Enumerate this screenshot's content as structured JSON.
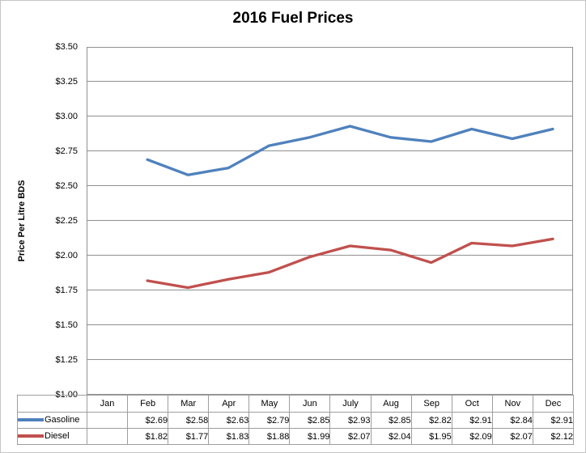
{
  "title": "2016 Fuel Prices",
  "y_axis": {
    "title": "Price Per Litre BDS",
    "tick_labels": [
      "$3.50",
      "$3.25",
      "$3.00",
      "$2.75",
      "$2.50",
      "$2.25",
      "$2.00",
      "$1.75",
      "$1.50",
      "$1.25",
      "$1.00"
    ]
  },
  "colors": {
    "gasoline": "#4F81BD",
    "diesel": "#C0504D",
    "gridline": "#8f8f8f",
    "table_border": "#9e9e9e",
    "frame_border": "#c6c6c6"
  },
  "chart_data": {
    "type": "line",
    "title": "2016 Fuel Prices",
    "xlabel": "",
    "ylabel": "Price Per Litre BDS",
    "categories": [
      "Jan",
      "Feb",
      "Mar",
      "Apr",
      "May",
      "Jun",
      "July",
      "Aug",
      "Sep",
      "Oct",
      "Nov",
      "Dec"
    ],
    "ylim": [
      1.0,
      3.5
    ],
    "ytick_step": 0.25,
    "grid": true,
    "legend_position": "data-table-left",
    "series": [
      {
        "name": "Gasoline",
        "color": "#4F81BD",
        "values": [
          null,
          2.69,
          2.58,
          2.63,
          2.79,
          2.85,
          2.93,
          2.85,
          2.82,
          2.91,
          2.84,
          2.91
        ]
      },
      {
        "name": "Diesel",
        "color": "#C0504D",
        "values": [
          null,
          1.82,
          1.77,
          1.83,
          1.88,
          1.99,
          2.07,
          2.04,
          1.95,
          2.09,
          2.07,
          2.12
        ]
      }
    ]
  },
  "table": {
    "months": [
      "Jan",
      "Feb",
      "Mar",
      "Apr",
      "May",
      "Jun",
      "July",
      "Aug",
      "Sep",
      "Oct",
      "Nov",
      "Dec"
    ],
    "rows": [
      {
        "label": "Gasoline",
        "cells": [
          "",
          "$2.69",
          "$2.58",
          "$2.63",
          "$2.79",
          "$2.85",
          "$2.93",
          "$2.85",
          "$2.82",
          "$2.91",
          "$2.84",
          "$2.91"
        ]
      },
      {
        "label": "Diesel",
        "cells": [
          "",
          "$1.82",
          "$1.77",
          "$1.83",
          "$1.88",
          "$1.99",
          "$2.07",
          "$2.04",
          "$1.95",
          "$2.09",
          "$2.07",
          "$2.12"
        ]
      }
    ]
  }
}
